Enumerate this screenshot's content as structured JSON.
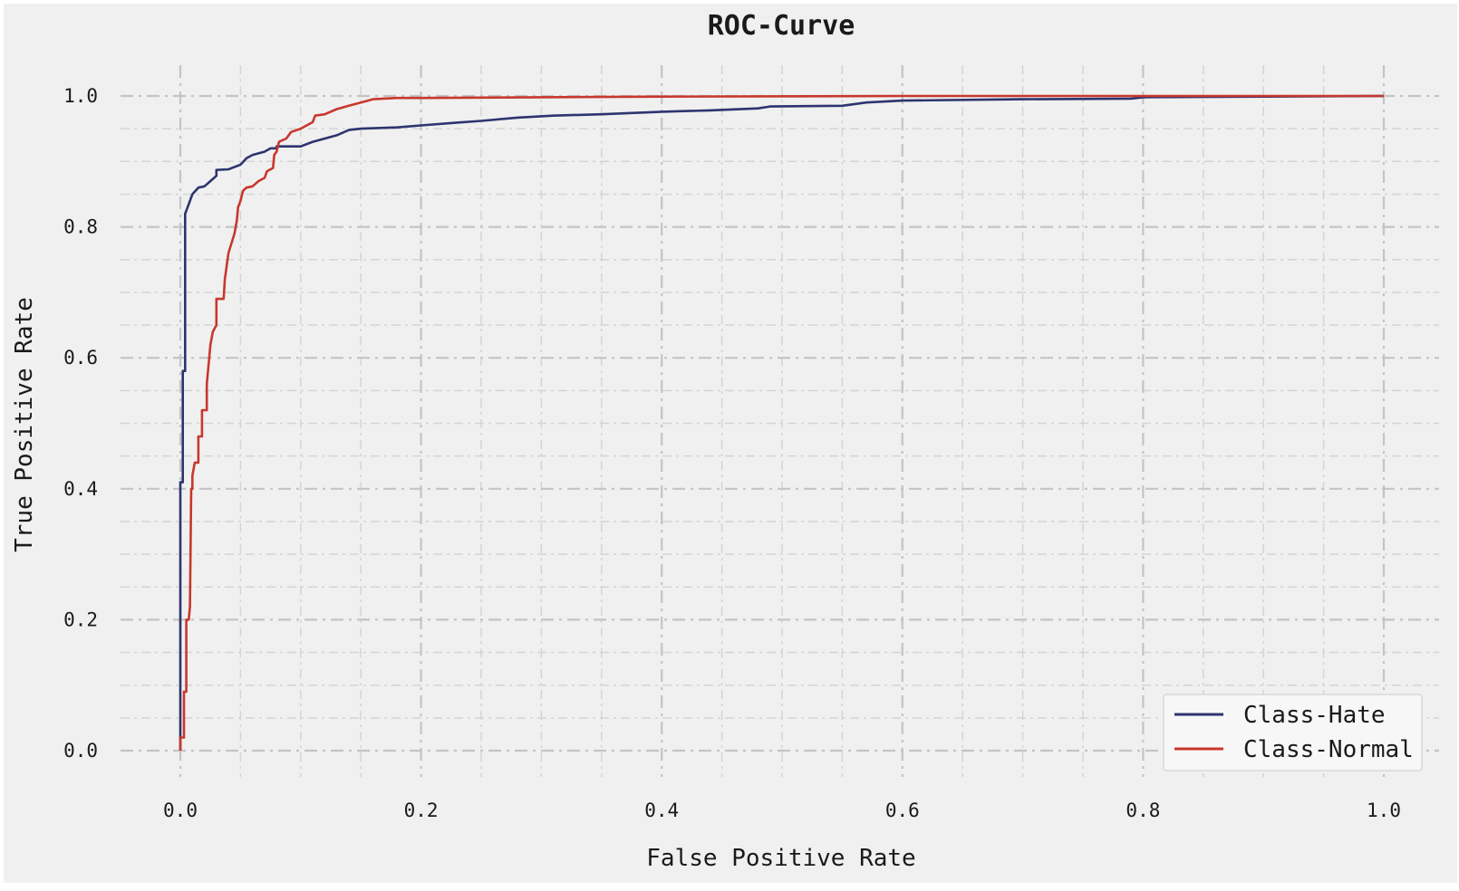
{
  "chart_data": {
    "type": "line",
    "title": "ROC-Curve",
    "xlabel": "False Positive Rate",
    "ylabel": "True Positive Rate",
    "xlim": [
      0.0,
      1.0
    ],
    "ylim": [
      0.0,
      1.0
    ],
    "xticks": [
      "0.0",
      "0.2",
      "0.4",
      "0.6",
      "0.8",
      "1.0"
    ],
    "yticks": [
      "0.0",
      "0.2",
      "0.4",
      "0.6",
      "0.8",
      "1.0"
    ],
    "grid": true,
    "legend_position": "lower-right",
    "series": [
      {
        "name": "Class-Hate",
        "color": "#2e3470",
        "points": [
          [
            0.0,
            0.0
          ],
          [
            0.0,
            0.41
          ],
          [
            0.002,
            0.41
          ],
          [
            0.002,
            0.58
          ],
          [
            0.004,
            0.58
          ],
          [
            0.004,
            0.82
          ],
          [
            0.006,
            0.83
          ],
          [
            0.01,
            0.85
          ],
          [
            0.015,
            0.86
          ],
          [
            0.02,
            0.862
          ],
          [
            0.025,
            0.87
          ],
          [
            0.03,
            0.878
          ],
          [
            0.03,
            0.887
          ],
          [
            0.04,
            0.888
          ],
          [
            0.05,
            0.895
          ],
          [
            0.055,
            0.905
          ],
          [
            0.06,
            0.91
          ],
          [
            0.07,
            0.915
          ],
          [
            0.075,
            0.92
          ],
          [
            0.08,
            0.92
          ],
          [
            0.08,
            0.923
          ],
          [
            0.1,
            0.923
          ],
          [
            0.11,
            0.93
          ],
          [
            0.12,
            0.935
          ],
          [
            0.13,
            0.94
          ],
          [
            0.14,
            0.948
          ],
          [
            0.15,
            0.95
          ],
          [
            0.18,
            0.952
          ],
          [
            0.2,
            0.955
          ],
          [
            0.22,
            0.958
          ],
          [
            0.25,
            0.962
          ],
          [
            0.28,
            0.967
          ],
          [
            0.31,
            0.97
          ],
          [
            0.35,
            0.972
          ],
          [
            0.4,
            0.976
          ],
          [
            0.44,
            0.978
          ],
          [
            0.48,
            0.981
          ],
          [
            0.49,
            0.984
          ],
          [
            0.55,
            0.985
          ],
          [
            0.57,
            0.99
          ],
          [
            0.6,
            0.993
          ],
          [
            0.7,
            0.995
          ],
          [
            0.79,
            0.996
          ],
          [
            0.8,
            0.998
          ],
          [
            0.9,
            0.999
          ],
          [
            1.0,
            1.0
          ]
        ]
      },
      {
        "name": "Class-Normal",
        "color": "#c8372d",
        "points": [
          [
            0.0,
            0.0
          ],
          [
            0.0,
            0.02
          ],
          [
            0.003,
            0.02
          ],
          [
            0.003,
            0.09
          ],
          [
            0.005,
            0.09
          ],
          [
            0.005,
            0.2
          ],
          [
            0.007,
            0.2
          ],
          [
            0.008,
            0.22
          ],
          [
            0.009,
            0.4
          ],
          [
            0.01,
            0.4
          ],
          [
            0.01,
            0.42
          ],
          [
            0.012,
            0.44
          ],
          [
            0.015,
            0.44
          ],
          [
            0.015,
            0.48
          ],
          [
            0.018,
            0.48
          ],
          [
            0.018,
            0.52
          ],
          [
            0.022,
            0.52
          ],
          [
            0.022,
            0.56
          ],
          [
            0.025,
            0.62
          ],
          [
            0.027,
            0.64
          ],
          [
            0.03,
            0.65
          ],
          [
            0.03,
            0.69
          ],
          [
            0.036,
            0.69
          ],
          [
            0.037,
            0.72
          ],
          [
            0.04,
            0.76
          ],
          [
            0.045,
            0.79
          ],
          [
            0.047,
            0.81
          ],
          [
            0.048,
            0.83
          ],
          [
            0.05,
            0.84
          ],
          [
            0.052,
            0.855
          ],
          [
            0.055,
            0.86
          ],
          [
            0.06,
            0.862
          ],
          [
            0.065,
            0.87
          ],
          [
            0.07,
            0.875
          ],
          [
            0.072,
            0.885
          ],
          [
            0.077,
            0.89
          ],
          [
            0.078,
            0.91
          ],
          [
            0.08,
            0.915
          ],
          [
            0.082,
            0.93
          ],
          [
            0.088,
            0.935
          ],
          [
            0.092,
            0.945
          ],
          [
            0.1,
            0.95
          ],
          [
            0.105,
            0.955
          ],
          [
            0.11,
            0.96
          ],
          [
            0.112,
            0.97
          ],
          [
            0.12,
            0.972
          ],
          [
            0.13,
            0.98
          ],
          [
            0.14,
            0.985
          ],
          [
            0.15,
            0.99
          ],
          [
            0.16,
            0.995
          ],
          [
            0.18,
            0.997
          ],
          [
            0.2,
            0.997
          ],
          [
            0.3,
            0.998
          ],
          [
            0.4,
            0.999
          ],
          [
            0.6,
            1.0
          ],
          [
            1.0,
            1.0
          ]
        ]
      }
    ]
  }
}
